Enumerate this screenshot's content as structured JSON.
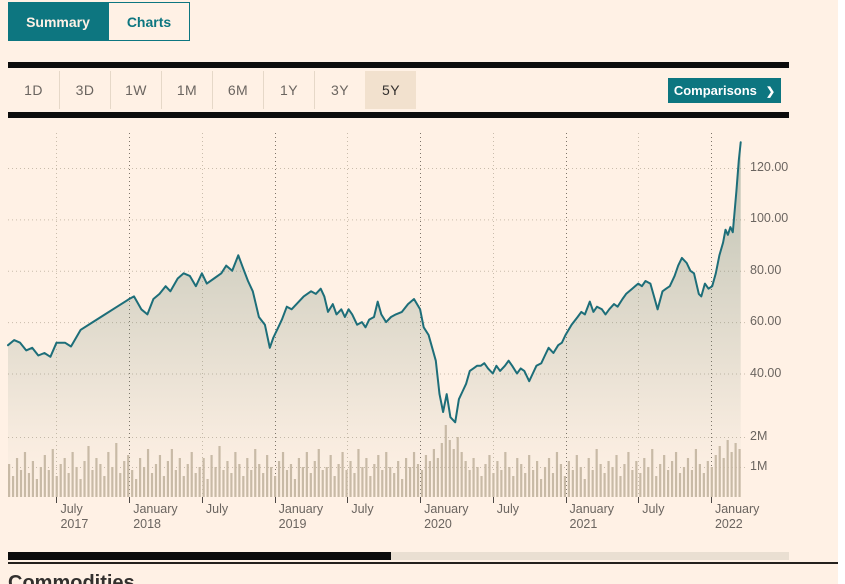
{
  "tabs": {
    "summary": "Summary",
    "charts": "Charts"
  },
  "toolbar": {
    "ranges": [
      "1D",
      "3D",
      "1W",
      "1M",
      "6M",
      "1Y",
      "3Y",
      "5Y"
    ],
    "selected_range": "5Y",
    "comparisons_label": "Comparisons",
    "comparisons_chevron": "❯"
  },
  "bottom": {
    "section_heading": "Commodities"
  },
  "colors": {
    "background": "#fff1e5",
    "accent_teal": "#0d7680",
    "line": "#1d6e79",
    "area_fill": "96,125,105",
    "volume_bar": "#c8baa6",
    "grid_light": "#c9bcab",
    "grid_dark": "#7d7469",
    "axis_text": "#6b6560",
    "selected_button_bg": "#f2e1ce",
    "rule_black": "#0c0c0c"
  },
  "chart_data": {
    "type": "line",
    "description": "5Y price history with volume bars; x in months from chart start (March 2017), price in dollars, volume in millions",
    "price_axis": {
      "ticks": [
        120,
        100,
        80,
        60,
        40
      ],
      "labels": [
        "120.00",
        "100.00",
        "80.00",
        "60.00",
        "40.00"
      ]
    },
    "volume_axis": {
      "ticks": [
        2,
        1
      ],
      "labels": [
        "2M",
        "1M"
      ]
    },
    "x_ticks": [
      {
        "m": 4,
        "month": "July",
        "year": "2017"
      },
      {
        "m": 10,
        "month": "January",
        "year": "2018"
      },
      {
        "m": 16,
        "month": "July",
        "year": ""
      },
      {
        "m": 22,
        "month": "January",
        "year": "2019"
      },
      {
        "m": 28,
        "month": "July",
        "year": ""
      },
      {
        "m": 34,
        "month": "January",
        "year": "2020"
      },
      {
        "m": 40,
        "month": "July",
        "year": ""
      },
      {
        "m": 46,
        "month": "January",
        "year": "2021"
      },
      {
        "m": 52,
        "month": "July",
        "year": ""
      },
      {
        "m": 58,
        "month": "January",
        "year": "2022"
      }
    ],
    "price_points": [
      [
        0,
        51
      ],
      [
        0.5,
        53
      ],
      [
        1,
        52
      ],
      [
        1.5,
        49
      ],
      [
        2,
        50
      ],
      [
        2.5,
        47
      ],
      [
        3,
        48
      ],
      [
        3.5,
        46.5
      ],
      [
        4,
        52
      ],
      [
        4.7,
        52
      ],
      [
        5.2,
        50.5
      ],
      [
        6,
        57
      ],
      [
        7,
        60
      ],
      [
        8,
        63
      ],
      [
        9,
        66
      ],
      [
        10,
        69
      ],
      [
        10.4,
        70
      ],
      [
        11,
        65
      ],
      [
        11.5,
        63
      ],
      [
        12,
        69
      ],
      [
        12.5,
        71
      ],
      [
        13,
        74
      ],
      [
        13.4,
        72
      ],
      [
        14,
        77
      ],
      [
        14.5,
        79
      ],
      [
        15,
        78
      ],
      [
        15.5,
        74
      ],
      [
        16,
        79
      ],
      [
        16.4,
        75
      ],
      [
        17,
        77
      ],
      [
        17.6,
        79
      ],
      [
        18,
        82
      ],
      [
        18.5,
        80
      ],
      [
        19,
        86
      ],
      [
        19.4,
        81
      ],
      [
        19.8,
        76
      ],
      [
        20.2,
        72
      ],
      [
        20.7,
        62
      ],
      [
        21.2,
        59
      ],
      [
        21.6,
        50
      ],
      [
        21.9,
        54
      ],
      [
        22.3,
        58
      ],
      [
        22.6,
        61
      ],
      [
        23,
        66
      ],
      [
        23.4,
        65
      ],
      [
        24,
        68
      ],
      [
        24.4,
        70
      ],
      [
        25,
        72
      ],
      [
        25.4,
        71
      ],
      [
        25.8,
        73
      ],
      [
        26.1,
        70
      ],
      [
        26.4,
        64
      ],
      [
        26.8,
        67
      ],
      [
        27.1,
        63
      ],
      [
        27.5,
        65
      ],
      [
        27.8,
        62
      ],
      [
        28.1,
        65
      ],
      [
        28.4,
        63
      ],
      [
        28.8,
        59
      ],
      [
        29.2,
        60
      ],
      [
        29.5,
        58
      ],
      [
        29.8,
        61
      ],
      [
        30.2,
        62
      ],
      [
        30.5,
        68
      ],
      [
        30.8,
        63
      ],
      [
        31.2,
        60
      ],
      [
        31.6,
        62
      ],
      [
        32,
        63
      ],
      [
        32.5,
        64
      ],
      [
        33,
        67
      ],
      [
        33.5,
        69
      ],
      [
        34,
        65
      ],
      [
        34.3,
        58
      ],
      [
        34.7,
        55
      ],
      [
        35,
        50
      ],
      [
        35.3,
        45
      ],
      [
        35.6,
        32
      ],
      [
        35.9,
        25
      ],
      [
        36.2,
        32
      ],
      [
        36.5,
        23
      ],
      [
        36.9,
        21
      ],
      [
        37.2,
        30
      ],
      [
        37.5,
        33
      ],
      [
        37.8,
        36
      ],
      [
        38.1,
        41
      ],
      [
        38.4,
        42
      ],
      [
        38.7,
        43
      ],
      [
        39,
        43
      ],
      [
        39.3,
        44
      ],
      [
        39.6,
        42
      ],
      [
        40,
        40
      ],
      [
        40.3,
        43
      ],
      [
        40.6,
        41
      ],
      [
        41,
        43
      ],
      [
        41.3,
        45
      ],
      [
        41.6,
        43
      ],
      [
        42,
        40
      ],
      [
        42.3,
        42
      ],
      [
        42.6,
        41
      ],
      [
        43,
        37
      ],
      [
        43.3,
        40
      ],
      [
        43.6,
        43
      ],
      [
        44,
        44
      ],
      [
        44.3,
        47
      ],
      [
        44.6,
        50
      ],
      [
        45,
        48
      ],
      [
        45.4,
        51
      ],
      [
        45.7,
        52
      ],
      [
        46,
        55
      ],
      [
        46.5,
        59
      ],
      [
        47,
        62
      ],
      [
        47.3,
        64
      ],
      [
        47.6,
        63
      ],
      [
        48,
        68
      ],
      [
        48.3,
        64
      ],
      [
        48.6,
        66
      ],
      [
        49,
        65
      ],
      [
        49.3,
        63
      ],
      [
        49.6,
        65
      ],
      [
        50,
        67
      ],
      [
        50.3,
        66
      ],
      [
        50.7,
        69
      ],
      [
        51,
        71
      ],
      [
        51.5,
        73
      ],
      [
        52,
        75
      ],
      [
        52.3,
        74
      ],
      [
        52.6,
        76
      ],
      [
        53,
        75
      ],
      [
        53.3,
        70
      ],
      [
        53.6,
        65
      ],
      [
        54,
        72
      ],
      [
        54.3,
        73
      ],
      [
        54.6,
        74
      ],
      [
        55,
        78
      ],
      [
        55.3,
        82
      ],
      [
        55.6,
        85
      ],
      [
        56,
        83
      ],
      [
        56.3,
        80
      ],
      [
        56.6,
        79
      ],
      [
        57,
        71
      ],
      [
        57.2,
        70
      ],
      [
        57.5,
        75
      ],
      [
        57.8,
        73
      ],
      [
        58.1,
        74
      ],
      [
        58.4,
        79
      ],
      [
        58.7,
        86
      ],
      [
        59,
        91
      ],
      [
        59.2,
        96
      ],
      [
        59.4,
        94
      ],
      [
        59.6,
        97
      ],
      [
        59.8,
        95
      ],
      [
        60.1,
        111
      ],
      [
        60.3,
        123
      ],
      [
        60.45,
        130
      ]
    ],
    "volume_values": [
      1.1,
      0.7,
      1.3,
      0.9,
      1.5,
      0.8,
      1.2,
      0.6,
      1.0,
      1.4,
      0.9,
      1.6,
      0.7,
      1.1,
      1.3,
      0.8,
      1.5,
      1.0,
      0.6,
      1.2,
      1.7,
      0.9,
      1.3,
      1.1,
      0.7,
      1.5,
      1.0,
      1.8,
      0.8,
      1.2,
      1.4,
      0.9,
      0.6,
      1.3,
      1.0,
      1.6,
      0.8,
      1.1,
      1.4,
      0.7,
      1.2,
      1.6,
      0.9,
      1.3,
      0.7,
      1.1,
      1.5,
      0.8,
      1.0,
      1.3,
      0.6,
      1.4,
      1.0,
      1.7,
      0.9,
      1.2,
      0.8,
      1.5,
      1.1,
      0.7,
      1.3,
      0.9,
      1.6,
      1.1,
      0.8,
      1.4,
      1.0,
      0.7,
      1.2,
      1.5,
      0.9,
      1.1,
      0.6,
      1.3,
      1.0,
      1.5,
      0.8,
      1.2,
      1.6,
      0.9,
      1.0,
      1.4,
      0.7,
      1.1,
      1.5,
      0.9,
      1.2,
      0.8,
      1.6,
      1.0,
      1.3,
      0.7,
      1.1,
      1.4,
      0.9,
      1.5,
      1.0,
      0.8,
      1.2,
      0.6,
      1.3,
      1.0,
      1.5,
      1.1,
      0.9,
      1.4,
      1.2,
      1.6,
      1.3,
      1.8,
      2.4,
      1.9,
      1.6,
      2.0,
      1.5,
      1.2,
      0.9,
      1.3,
      1.0,
      0.7,
      1.1,
      1.4,
      0.8,
      1.2,
      0.9,
      1.5,
      1.0,
      0.7,
      1.3,
      1.1,
      0.8,
      1.4,
      0.9,
      1.2,
      0.6,
      1.0,
      1.3,
      0.8,
      1.5,
      1.1,
      0.7,
      1.2,
      0.9,
      1.4,
      1.0,
      0.6,
      1.3,
      0.9,
      1.6,
      1.1,
      0.8,
      1.2,
      1.0,
      1.4,
      0.7,
      1.1,
      1.5,
      0.9,
      1.2,
      0.8,
      1.3,
      1.0,
      1.6,
      0.7,
      1.1,
      1.4,
      0.9,
      1.2,
      1.5,
      0.8,
      1.0,
      1.3,
      0.9,
      1.6,
      1.1,
      0.8,
      1.2,
      1.0,
      1.4,
      1.7,
      1.3,
      1.9,
      1.5,
      1.8,
      1.6
    ]
  }
}
